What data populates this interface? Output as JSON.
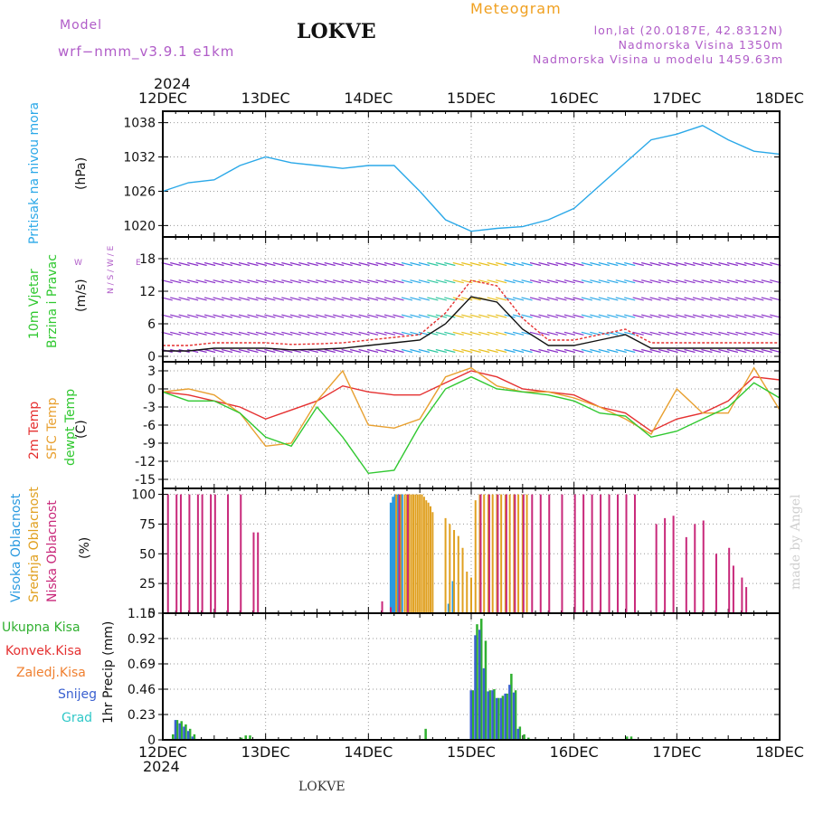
{
  "header": {
    "model_label": "Model",
    "model_value": "wrf−nmm_v3.9.1  e1km",
    "title": "LOKVE",
    "subtitle": "Meteogram",
    "coords": "lon,lat (20.0187E, 42.8312N)",
    "elevation": "Nadmorska Visina 1350m",
    "model_elevation": "Nadmorska Visina u modelu 1459.63m",
    "footer_station": "LOKVE",
    "watermark": "made by Angel"
  },
  "time_axis": {
    "year": "2024",
    "days": [
      "12DEC",
      "13DEC",
      "14DEC",
      "15DEC",
      "16DEC",
      "17DEC",
      "18DEC"
    ]
  },
  "colors": {
    "pressure": "#2aa8e8",
    "wind_speed": "#111111",
    "wind_gust": "#e53030",
    "temp_2m": "#e53030",
    "temp_sfc": "#e8a030",
    "dewpoint": "#30c830",
    "cloud_high": "#2a9ae0",
    "cloud_mid": "#e0a020",
    "cloud_low": "#c8287a",
    "precip_total": "#30b030",
    "precip_conv": "#e53030",
    "precip_frz": "#f08030",
    "precip_snow": "#3a60d0",
    "precip_hail": "#30c8c8"
  },
  "chart_data": [
    {
      "type": "line",
      "id": "pressure",
      "ylabel_main": "Pritisak na nivou mora",
      "unit": "(hPa)",
      "x_hours": [
        0,
        6,
        12,
        18,
        24,
        30,
        36,
        42,
        48,
        54,
        60,
        66,
        72,
        78,
        84,
        90,
        96,
        102,
        108,
        114,
        120,
        126,
        132,
        138,
        144
      ],
      "yticks": [
        1020,
        1026,
        1032,
        1038
      ],
      "ylim": [
        1018,
        1040
      ],
      "series": [
        {
          "values": [
            1026,
            1027.5,
            1028,
            1030.5,
            1032,
            1031,
            1030.5,
            1030,
            1030.5,
            1030.5,
            1026,
            1021,
            1019,
            1019.5,
            1019.8,
            1021,
            1023,
            1027,
            1031,
            1035,
            1036,
            1037.5,
            1035,
            1033,
            1032.5
          ]
        }
      ]
    },
    {
      "type": "line",
      "id": "wind",
      "ylabel_main": "10m Vjetar",
      "ylabel_sub": "Brzina i Pravac",
      "unit": "(m/s)",
      "compass": "N / S / W / E",
      "x_hours": [
        0,
        6,
        12,
        18,
        24,
        30,
        36,
        42,
        48,
        54,
        60,
        66,
        72,
        78,
        84,
        90,
        96,
        102,
        108,
        114,
        120,
        126,
        132,
        138,
        144
      ],
      "yticks": [
        0,
        6,
        12,
        18
      ],
      "ylim": [
        -1,
        22
      ],
      "series": [
        {
          "values": [
            1,
            1,
            1.5,
            1.5,
            1.5,
            1.2,
            1.3,
            1.5,
            2,
            2.5,
            3,
            6,
            11,
            10,
            5,
            2,
            2,
            3,
            4,
            1.5,
            1.5,
            1.5,
            1.5,
            1.5,
            1.5
          ]
        },
        {
          "values": [
            2,
            2,
            2.5,
            2.5,
            2.5,
            2.2,
            2.3,
            2.5,
            3,
            3.5,
            4,
            8,
            14,
            13,
            7,
            3,
            3,
            4,
            5,
            2.5,
            2.5,
            2.5,
            2.5,
            2.5,
            2.5
          ]
        }
      ]
    },
    {
      "type": "line",
      "id": "temperature",
      "ylabel_lines": [
        "2m Temp",
        "SFC Temp",
        "dewpt Temp"
      ],
      "unit": "(C)",
      "x_hours": [
        0,
        6,
        12,
        18,
        24,
        30,
        36,
        42,
        48,
        54,
        60,
        66,
        72,
        78,
        84,
        90,
        96,
        102,
        108,
        114,
        120,
        126,
        132,
        138,
        144
      ],
      "yticks": [
        3,
        0,
        -3,
        -6,
        -9,
        -12,
        -15
      ],
      "ylim": [
        -16.5,
        4.5
      ],
      "series": [
        {
          "values": [
            -0.5,
            -1,
            -2,
            -3,
            -5,
            -3.5,
            -2,
            0.5,
            -0.5,
            -1,
            -1,
            1,
            3,
            2,
            0,
            -0.5,
            -1,
            -3,
            -4,
            -7,
            -5,
            -4,
            -2,
            2,
            1.5
          ]
        },
        {
          "values": [
            -0.5,
            0,
            -1,
            -4,
            -9.5,
            -9,
            -2,
            3,
            -6,
            -6.5,
            -5,
            2,
            3.5,
            0.5,
            -0.5,
            -0.5,
            -1.5,
            -3,
            -5,
            -7.5,
            0,
            -4,
            -4,
            3.5,
            -3.5
          ]
        },
        {
          "values": [
            -0.5,
            -2,
            -2,
            -4,
            -8,
            -9.5,
            -3,
            -8,
            -14,
            -13.5,
            -6,
            0,
            2,
            0,
            -0.5,
            -1,
            -2,
            -4,
            -4.5,
            -8,
            -7,
            -5,
            -3,
            1,
            -1.5
          ]
        }
      ]
    },
    {
      "type": "bar",
      "id": "clouds",
      "ylabel_lines": [
        "Visoka Oblacnost",
        "Srednja Oblacnost",
        "Niska Oblacnost"
      ],
      "unit": "(%)",
      "yticks": [
        0,
        25,
        50,
        75,
        100
      ],
      "ylim": [
        0,
        105
      ],
      "series": [
        {
          "x": [
            53.5,
            54,
            54.5,
            55,
            55.5,
            56,
            67,
            68
          ],
          "values": [
            93,
            98,
            100,
            100,
            100,
            100,
            8,
            27
          ]
        },
        {
          "x": [
            54.5,
            55.5,
            56.5,
            57,
            57.5,
            58,
            58.5,
            59,
            59.5,
            60,
            60.5,
            61,
            61.5,
            62,
            62.5,
            63,
            66,
            67,
            68,
            69,
            70,
            71,
            72,
            73,
            74,
            75,
            76,
            77,
            78,
            79,
            80,
            81,
            82,
            83,
            84,
            85
          ],
          "values": [
            100,
            100,
            100,
            100,
            100,
            100,
            100,
            100,
            100,
            100,
            100,
            98,
            95,
            93,
            90,
            85,
            80,
            75,
            70,
            65,
            55,
            35,
            30,
            95,
            100,
            100,
            100,
            100,
            100,
            100,
            100,
            100,
            100,
            100,
            100,
            100
          ]
        },
        {
          "x": [
            1,
            3,
            4,
            6,
            8,
            9,
            11,
            12,
            15,
            18,
            21,
            22,
            51,
            53,
            55,
            57,
            74,
            76,
            78,
            80,
            82,
            84,
            86,
            88,
            90,
            93,
            96,
            98,
            100,
            102,
            104,
            106,
            108,
            110,
            115,
            117,
            119,
            122,
            124,
            126,
            129,
            132,
            133,
            135,
            136
          ],
          "values": [
            100,
            100,
            100,
            100,
            100,
            100,
            100,
            100,
            100,
            100,
            68,
            68,
            10,
            5,
            100,
            100,
            100,
            100,
            100,
            100,
            100,
            100,
            100,
            100,
            100,
            100,
            100,
            100,
            100,
            100,
            100,
            100,
            100,
            100,
            75,
            80,
            82,
            64,
            75,
            78,
            50,
            55,
            40,
            30,
            22
          ]
        }
      ]
    },
    {
      "type": "bar",
      "id": "precipitation",
      "legend": [
        "Ukupna  Kisa",
        "Konvek.Kisa",
        "Zaledj.Kisa",
        "Snijeg",
        "Grad"
      ],
      "ylabel": "1hr Precip (mm)",
      "yticks": [
        0,
        0.23,
        0.46,
        0.69,
        0.92,
        1.15
      ],
      "ylim": [
        0,
        1.15
      ],
      "series": [
        {
          "x": [
            2,
            3,
            4,
            5,
            6,
            7,
            18,
            19,
            20,
            61,
            72,
            73,
            74,
            75,
            76,
            77,
            78,
            79,
            80,
            81,
            82,
            83,
            84,
            85,
            108,
            109
          ],
          "values": [
            0.05,
            0.18,
            0.17,
            0.14,
            0.1,
            0.05,
            0.02,
            0.04,
            0.04,
            0.1,
            0.45,
            1.05,
            1.1,
            0.9,
            0.45,
            0.46,
            0.38,
            0.4,
            0.42,
            0.6,
            0.45,
            0.12,
            0.05,
            0.02,
            0.03,
            0.03
          ]
        },
        {
          "x": [
            3,
            4,
            5,
            6,
            7,
            72,
            73,
            74,
            75,
            76,
            77,
            78,
            79,
            80,
            81,
            82,
            83
          ],
          "values": [
            0.18,
            0.15,
            0.12,
            0.08,
            0.03,
            0.45,
            0.95,
            1.0,
            0.65,
            0.44,
            0.45,
            0.38,
            0.38,
            0.42,
            0.5,
            0.43,
            0.1
          ]
        }
      ]
    }
  ]
}
